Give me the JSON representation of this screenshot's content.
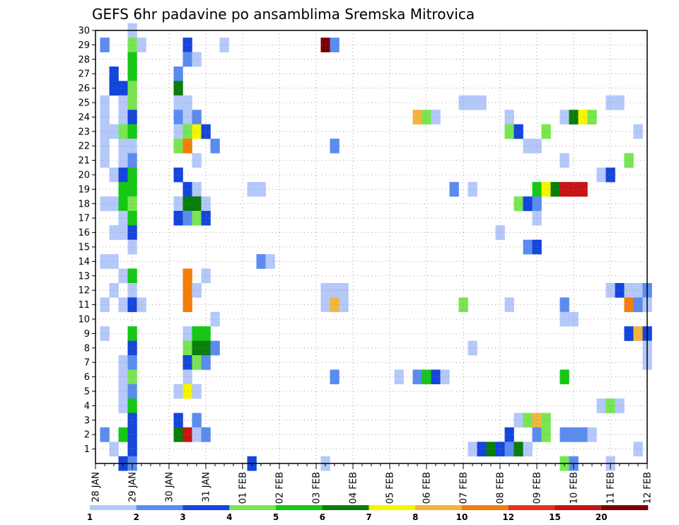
{
  "chart_data": {
    "type": "heatmap",
    "title": "GEFS 6hr padavine po ansamblima Sremska Mitrovica",
    "x_tick_labels": [
      "28 JAN",
      "29 JAN",
      "30 JAN",
      "31 JAN",
      "01 FEB",
      "02 FEB",
      "03 FEB",
      "04 FEB",
      "05 FEB",
      "06 FEB",
      "07 FEB",
      "08 FEB",
      "09 FEB",
      "10 FEB",
      "11 FEB",
      "12 FEB"
    ],
    "x_steps_per_day": 4,
    "x_range_steps": [
      0,
      60
    ],
    "y_tick_labels": [
      "1",
      "2",
      "3",
      "4",
      "5",
      "6",
      "7",
      "8",
      "9",
      "10",
      "11",
      "12",
      "13",
      "14",
      "15",
      "16",
      "17",
      "18",
      "19",
      "20",
      "21",
      "22",
      "23",
      "24",
      "25",
      "26",
      "27",
      "28",
      "29",
      "30"
    ],
    "y_range": [
      0,
      30
    ],
    "grid": true,
    "legend": {
      "placement": "bottom",
      "levels": [
        "1",
        "2",
        "3",
        "4",
        "5",
        "6",
        "7",
        "8",
        "10",
        "12",
        "15",
        "20"
      ],
      "colors": [
        "#b4c8fa",
        "#5a8cf0",
        "#1446dc",
        "#78e650",
        "#14c814",
        "#0a7d0a",
        "#f5f500",
        "#f5b43c",
        "#f57d0a",
        "#e6321e",
        "#c81414",
        "#780000"
      ]
    },
    "cells": [
      [
        1,
        29,
        2
      ],
      [
        1,
        25,
        1
      ],
      [
        1,
        24,
        1
      ],
      [
        1,
        23,
        1
      ],
      [
        1,
        22,
        1
      ],
      [
        1,
        21,
        1
      ],
      [
        1,
        18,
        1
      ],
      [
        1,
        14,
        1
      ],
      [
        1,
        11,
        1
      ],
      [
        1,
        9,
        1
      ],
      [
        1,
        2,
        2
      ],
      [
        2,
        27,
        3
      ],
      [
        2,
        26,
        3
      ],
      [
        2,
        23,
        1
      ],
      [
        2,
        20,
        1
      ],
      [
        2,
        18,
        1
      ],
      [
        2,
        16,
        1
      ],
      [
        2,
        14,
        1
      ],
      [
        2,
        12,
        1
      ],
      [
        2,
        1,
        1
      ],
      [
        3,
        26,
        3
      ],
      [
        3,
        25,
        1
      ],
      [
        3,
        24,
        1
      ],
      [
        3,
        23,
        4
      ],
      [
        3,
        22,
        1
      ],
      [
        3,
        21,
        1
      ],
      [
        3,
        20,
        3
      ],
      [
        3,
        19,
        5
      ],
      [
        3,
        18,
        5
      ],
      [
        3,
        17,
        1
      ],
      [
        3,
        16,
        1
      ],
      [
        3,
        13,
        1
      ],
      [
        3,
        11,
        1
      ],
      [
        3,
        7,
        1
      ],
      [
        3,
        6,
        1
      ],
      [
        3,
        5,
        1
      ],
      [
        3,
        4,
        1
      ],
      [
        3,
        2,
        5
      ],
      [
        3,
        0,
        3
      ],
      [
        4,
        30,
        1
      ],
      [
        4,
        29,
        4
      ],
      [
        4,
        28,
        5
      ],
      [
        4,
        27,
        5
      ],
      [
        4,
        26,
        4
      ],
      [
        4,
        25,
        4
      ],
      [
        4,
        24,
        3
      ],
      [
        4,
        23,
        5
      ],
      [
        4,
        22,
        1
      ],
      [
        4,
        21,
        2
      ],
      [
        4,
        20,
        5
      ],
      [
        4,
        19,
        5
      ],
      [
        4,
        18,
        4
      ],
      [
        4,
        17,
        5
      ],
      [
        4,
        16,
        3
      ],
      [
        4,
        15,
        1
      ],
      [
        4,
        13,
        5
      ],
      [
        4,
        12,
        1
      ],
      [
        4,
        11,
        3
      ],
      [
        4,
        9,
        5
      ],
      [
        4,
        8,
        3
      ],
      [
        4,
        7,
        2
      ],
      [
        4,
        6,
        4
      ],
      [
        4,
        5,
        2
      ],
      [
        4,
        4,
        5
      ],
      [
        4,
        3,
        3
      ],
      [
        4,
        2,
        3
      ],
      [
        4,
        1,
        3
      ],
      [
        4,
        0,
        2
      ],
      [
        5,
        29,
        1
      ],
      [
        5,
        11,
        1
      ],
      [
        9,
        27,
        2
      ],
      [
        9,
        26,
        6
      ],
      [
        9,
        25,
        1
      ],
      [
        9,
        24,
        2
      ],
      [
        9,
        23,
        1
      ],
      [
        9,
        22,
        4
      ],
      [
        9,
        20,
        3
      ],
      [
        9,
        18,
        1
      ],
      [
        9,
        17,
        3
      ],
      [
        9,
        5,
        1
      ],
      [
        9,
        3,
        3
      ],
      [
        9,
        2,
        6
      ],
      [
        10,
        29,
        3
      ],
      [
        10,
        28,
        2
      ],
      [
        10,
        25,
        1
      ],
      [
        10,
        24,
        1
      ],
      [
        10,
        23,
        4
      ],
      [
        10,
        22,
        9
      ],
      [
        10,
        19,
        3
      ],
      [
        10,
        18,
        6
      ],
      [
        10,
        17,
        2
      ],
      [
        10,
        13,
        9
      ],
      [
        10,
        12,
        9
      ],
      [
        10,
        11,
        9
      ],
      [
        10,
        9,
        1
      ],
      [
        10,
        8,
        4
      ],
      [
        10,
        7,
        3
      ],
      [
        10,
        6,
        1
      ],
      [
        10,
        5,
        7
      ],
      [
        10,
        2,
        11
      ],
      [
        11,
        28,
        1
      ],
      [
        11,
        24,
        2
      ],
      [
        11,
        23,
        7
      ],
      [
        11,
        21,
        1
      ],
      [
        11,
        19,
        1
      ],
      [
        11,
        18,
        6
      ],
      [
        11,
        17,
        4
      ],
      [
        11,
        12,
        1
      ],
      [
        11,
        9,
        5
      ],
      [
        11,
        8,
        6
      ],
      [
        11,
        7,
        4
      ],
      [
        11,
        5,
        1
      ],
      [
        11,
        3,
        2
      ],
      [
        11,
        2,
        1
      ],
      [
        12,
        23,
        3
      ],
      [
        12,
        18,
        1
      ],
      [
        12,
        17,
        3
      ],
      [
        12,
        13,
        1
      ],
      [
        12,
        9,
        5
      ],
      [
        12,
        8,
        6
      ],
      [
        12,
        7,
        2
      ],
      [
        12,
        2,
        2
      ],
      [
        13,
        22,
        2
      ],
      [
        13,
        10,
        1
      ],
      [
        13,
        8,
        2
      ],
      [
        14,
        29,
        1
      ],
      [
        17,
        19,
        1
      ],
      [
        17,
        0,
        3
      ],
      [
        18,
        19,
        1
      ],
      [
        18,
        14,
        2
      ],
      [
        19,
        14,
        1
      ],
      [
        25,
        29,
        12
      ],
      [
        25,
        12,
        1
      ],
      [
        25,
        11,
        1
      ],
      [
        25,
        0,
        1
      ],
      [
        26,
        29,
        2
      ],
      [
        26,
        22,
        2
      ],
      [
        26,
        12,
        1
      ],
      [
        26,
        11,
        8
      ],
      [
        26,
        6,
        2
      ],
      [
        27,
        12,
        1
      ],
      [
        27,
        11,
        1
      ],
      [
        33,
        6,
        1
      ],
      [
        35,
        24,
        8
      ],
      [
        35,
        6,
        2
      ],
      [
        36,
        24,
        4
      ],
      [
        36,
        6,
        5
      ],
      [
        37,
        24,
        1
      ],
      [
        37,
        6,
        3
      ],
      [
        38,
        6,
        1
      ],
      [
        39,
        19,
        2
      ],
      [
        40,
        25,
        1
      ],
      [
        40,
        11,
        4
      ],
      [
        41,
        25,
        1
      ],
      [
        41,
        19,
        1
      ],
      [
        41,
        8,
        1
      ],
      [
        41,
        1,
        1
      ],
      [
        42,
        25,
        1
      ],
      [
        42,
        1,
        3
      ],
      [
        43,
        1,
        6
      ],
      [
        44,
        16,
        1
      ],
      [
        44,
        1,
        3
      ],
      [
        45,
        24,
        1
      ],
      [
        45,
        23,
        4
      ],
      [
        45,
        11,
        1
      ],
      [
        45,
        2,
        3
      ],
      [
        45,
        1,
        2
      ],
      [
        46,
        23,
        3
      ],
      [
        46,
        18,
        4
      ],
      [
        46,
        3,
        1
      ],
      [
        46,
        1,
        6
      ],
      [
        47,
        22,
        1
      ],
      [
        47,
        18,
        3
      ],
      [
        47,
        15,
        2
      ],
      [
        47,
        3,
        4
      ],
      [
        47,
        1,
        1
      ],
      [
        48,
        22,
        1
      ],
      [
        48,
        19,
        5
      ],
      [
        48,
        18,
        2
      ],
      [
        48,
        17,
        1
      ],
      [
        48,
        15,
        3
      ],
      [
        48,
        3,
        8
      ],
      [
        48,
        2,
        2
      ],
      [
        49,
        23,
        4
      ],
      [
        49,
        19,
        7
      ],
      [
        49,
        3,
        4
      ],
      [
        49,
        2,
        4
      ],
      [
        50,
        19,
        6
      ],
      [
        51,
        24,
        1
      ],
      [
        51,
        21,
        1
      ],
      [
        51,
        19,
        11
      ],
      [
        51,
        11,
        2
      ],
      [
        51,
        10,
        1
      ],
      [
        51,
        6,
        5
      ],
      [
        51,
        2,
        2
      ],
      [
        51,
        0,
        4
      ],
      [
        52,
        24,
        6
      ],
      [
        52,
        19,
        11
      ],
      [
        52,
        10,
        1
      ],
      [
        52,
        2,
        2
      ],
      [
        52,
        0,
        2
      ],
      [
        53,
        24,
        7
      ],
      [
        53,
        19,
        11
      ],
      [
        53,
        2,
        2
      ],
      [
        54,
        24,
        4
      ],
      [
        54,
        2,
        1
      ],
      [
        55,
        20,
        1
      ],
      [
        55,
        4,
        1
      ],
      [
        56,
        25,
        1
      ],
      [
        56,
        20,
        3
      ],
      [
        56,
        12,
        1
      ],
      [
        56,
        4,
        4
      ],
      [
        56,
        0,
        1
      ],
      [
        57,
        25,
        1
      ],
      [
        57,
        12,
        3
      ],
      [
        57,
        4,
        1
      ],
      [
        58,
        21,
        4
      ],
      [
        58,
        12,
        1
      ],
      [
        58,
        11,
        9
      ],
      [
        58,
        9,
        3
      ],
      [
        59,
        23,
        1
      ],
      [
        59,
        12,
        1
      ],
      [
        59,
        11,
        2
      ],
      [
        59,
        9,
        8
      ],
      [
        59,
        1,
        1
      ],
      [
        60,
        12,
        2
      ],
      [
        60,
        11,
        1
      ],
      [
        60,
        9,
        3
      ],
      [
        60,
        7,
        1
      ],
      [
        60,
        8,
        1
      ]
    ]
  }
}
